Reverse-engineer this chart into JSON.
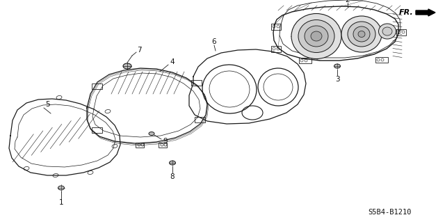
{
  "background_color": "#ffffff",
  "line_color": "#1a1a1a",
  "text_color": "#111111",
  "fig_width": 6.4,
  "fig_height": 3.19,
  "dpi": 100,
  "diagram_code": "S5B4-B1210"
}
